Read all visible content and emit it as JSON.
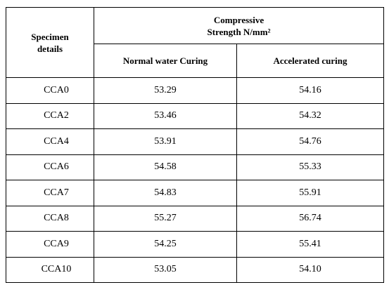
{
  "table": {
    "header": {
      "first": [
        "Specimen",
        "details"
      ],
      "group": [
        "Compressive",
        "Strength N/mm²"
      ],
      "sub": [
        "Normal water Curing",
        "Accelerated curing"
      ]
    },
    "rows": [
      [
        "CCA0",
        "53.29",
        "54.16"
      ],
      [
        "CCA2",
        "53.46",
        "54.32"
      ],
      [
        "CCA4",
        "53.91",
        "54.76"
      ],
      [
        "CCA6",
        "54.58",
        "55.33"
      ],
      [
        "CCA7",
        "54.83",
        "55.91"
      ],
      [
        "CCA8",
        "55.27",
        "56.74"
      ],
      [
        "CCA9",
        "54.25",
        "55.41"
      ],
      [
        "CCA10",
        "53.05",
        "54.10"
      ]
    ]
  }
}
